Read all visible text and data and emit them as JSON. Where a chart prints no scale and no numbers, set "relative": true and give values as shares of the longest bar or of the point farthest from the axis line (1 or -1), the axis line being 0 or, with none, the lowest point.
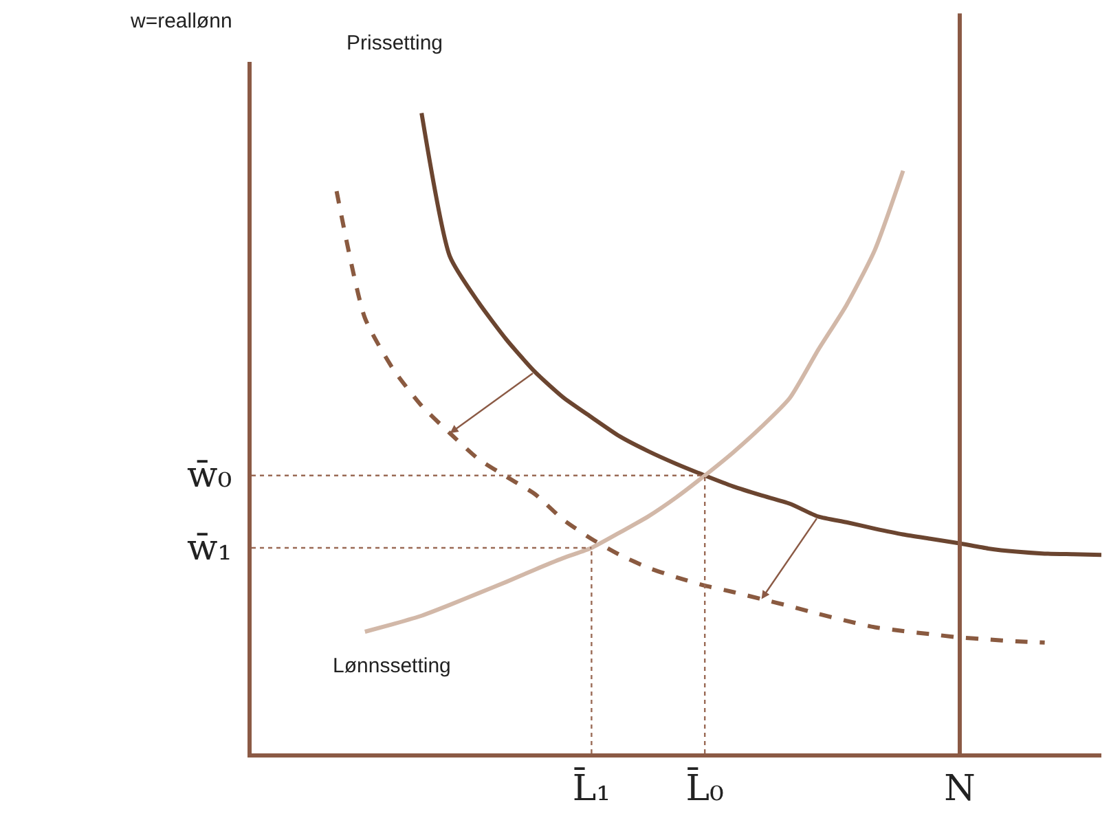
{
  "chart_data": {
    "type": "line",
    "relative": true,
    "ylabel": "w=reallønn",
    "legend": false,
    "grid": false,
    "tick_labels": "x",
    "categories": [
      null,
      null,
      null,
      null,
      null,
      null,
      null,
      null,
      null,
      null,
      null,
      null,
      "L̄₁",
      null,
      null,
      null,
      "L̄₀",
      null,
      null,
      null,
      null,
      null,
      null,
      null,
      null,
      "N",
      null,
      null,
      null,
      null,
      null
    ],
    "series": [
      {
        "name": "Prissetting",
        "color": "#6b4530",
        "line_style": "solid",
        "values": [
          null,
          null,
          null,
          null,
          null,
          null,
          1.0,
          0.776,
          0.705,
          0.646,
          0.596,
          0.556,
          0.525,
          0.495,
          0.472,
          0.452,
          0.434,
          0.417,
          0.403,
          0.39,
          0.37,
          0.361,
          0.351,
          0.342,
          0.335,
          0.328,
          0.32,
          0.315,
          0.312,
          0.311,
          0.31
        ]
      },
      {
        "color": "#8a5a40",
        "line_style": "dashed",
        "values": [
          null,
          null,
          null,
          0.878,
          0.68,
          0.6,
          0.543,
          0.5,
          0.46,
          0.432,
          0.405,
          0.365,
          0.335,
          0.31,
          0.29,
          0.275,
          0.262,
          0.252,
          0.241,
          0.23,
          0.218,
          0.207,
          0.197,
          0.191,
          0.186,
          0.181,
          0.178,
          0.175,
          0.173,
          null,
          null
        ]
      },
      {
        "name": "Lønnssetting",
        "color": "#d2b8a8",
        "line_style": "solid",
        "values": [
          null,
          null,
          null,
          null,
          0.19,
          0.202,
          0.215,
          0.232,
          0.25,
          0.268,
          0.287,
          0.305,
          0.321,
          0.345,
          0.37,
          0.4,
          0.434,
          0.47,
          0.51,
          0.555,
          0.63,
          0.7,
          0.786,
          0.91,
          null,
          null,
          null,
          null,
          null,
          null,
          null
        ]
      },
      {
        "color": "#9a6a55",
        "line_style": "dotted",
        "values": [
          0.434,
          0.434,
          0.434,
          0.434,
          0.434,
          0.434,
          0.434,
          0.434,
          0.434,
          0.434,
          0.434,
          0.434,
          0.434,
          0.434,
          0.434,
          0.434,
          0.434,
          null,
          null,
          null,
          null,
          null,
          null,
          null,
          null,
          null,
          null,
          null,
          null,
          null,
          null
        ]
      },
      {
        "color": "#9a6a55",
        "line_style": "dotted",
        "values": [
          0.321,
          0.321,
          0.321,
          0.321,
          0.321,
          0.321,
          0.321,
          0.321,
          0.321,
          0.321,
          0.321,
          0.321,
          0.321,
          null,
          null,
          null,
          null,
          null,
          null,
          null,
          null,
          null,
          null,
          null,
          null,
          null,
          null,
          null,
          null,
          null,
          null
        ]
      }
    ],
    "ref_lines": [
      {
        "axis": "x",
        "value": "N",
        "color": "#8b5a45",
        "line_style": "solid"
      }
    ],
    "annotations": [
      "w̄₀",
      "w̄₁"
    ]
  }
}
